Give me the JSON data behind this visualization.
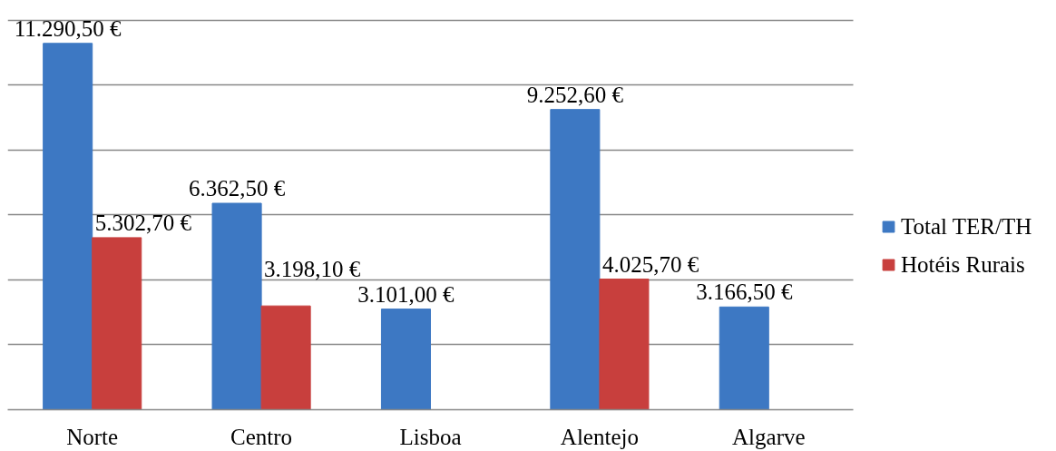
{
  "chart_data": {
    "type": "bar",
    "categories": [
      "Norte",
      "Centro",
      "Lisboa",
      "Alentejo",
      "Algarve"
    ],
    "series": [
      {
        "name": "Total TER/TH",
        "color": "#3d78c3",
        "values": [
          11290.5,
          6362.5,
          3101.0,
          9252.6,
          3166.5
        ],
        "value_labels": [
          "11.290,50 €",
          "6.362,50 €",
          "3.101,00 €",
          "9.252,60 €",
          "3.166,50 €"
        ]
      },
      {
        "name": "Hotéis Rurais",
        "color": "#c83f3d",
        "values": [
          5302.7,
          3198.1,
          null,
          4025.7,
          null
        ],
        "value_labels": [
          "5.302,70 €",
          "3.198,10 €",
          null,
          "4.025,70 €",
          null
        ]
      }
    ],
    "tick_labels": "x",
    "grid": "y",
    "legend": "right"
  }
}
